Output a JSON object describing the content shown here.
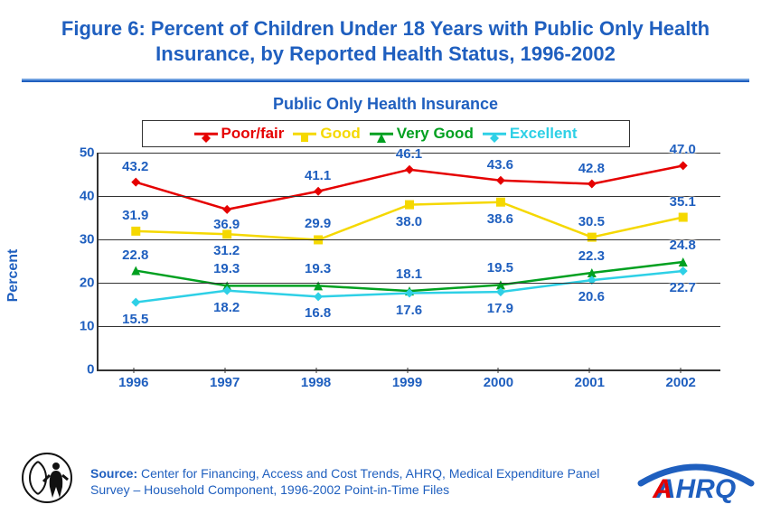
{
  "title": "Figure 6: Percent of Children Under 18 Years with Public Only Health Insurance, by Reported Health Status, 1996-2002",
  "subtitle": "Public Only Health Insurance",
  "y_axis_label": "Percent",
  "source_label": "Source:",
  "source_text": "Center for Financing, Access and Cost Trends, AHRQ, Medical Expenditure Panel Survey – Household Component, 1996-2002 Point-in-Time Files",
  "chart": {
    "type": "line",
    "categories": [
      "1996",
      "1997",
      "1998",
      "1999",
      "2000",
      "2001",
      "2002"
    ],
    "ylim": [
      0,
      50
    ],
    "ytick_step": 10,
    "y_ticks": [
      0,
      10,
      20,
      30,
      40,
      50
    ],
    "background_color": "#ffffff",
    "grid_color": "#333333",
    "axis_color": "#333333",
    "tick_font_color": "#1f5fbf",
    "label_font_color": "#1f5fbf",
    "data_label_font_color": "#1f5fbf",
    "title_font_color": "#1f5fbf",
    "tick_fontsize": 15,
    "label_fontsize": 16,
    "data_label_fontsize": 15,
    "line_width": 2.5,
    "marker_size": 10,
    "series": [
      {
        "name": "Poor/fair",
        "color": "#e50000",
        "marker": "diamond",
        "values": [
          43.2,
          36.9,
          41.1,
          46.1,
          43.6,
          42.8,
          47.0
        ],
        "label_offsets": [
          -18,
          16,
          -18,
          -18,
          -18,
          -18,
          -18
        ]
      },
      {
        "name": "Good",
        "color": "#f5d800",
        "marker": "square",
        "values": [
          31.9,
          31.2,
          29.9,
          38.0,
          38.6,
          30.5,
          35.1
        ],
        "label_offsets": [
          -18,
          18,
          -18,
          18,
          18,
          -18,
          -18
        ]
      },
      {
        "name": "Very Good",
        "color": "#00a020",
        "marker": "triangle",
        "values": [
          22.8,
          19.3,
          19.3,
          18.1,
          19.5,
          22.3,
          24.8
        ],
        "label_offsets": [
          -18,
          -19,
          -19,
          -19,
          -19,
          -19,
          -19
        ]
      },
      {
        "name": "Excellent",
        "color": "#2ed0e6",
        "marker": "diamond",
        "values": [
          15.5,
          18.2,
          16.8,
          17.6,
          17.9,
          20.6,
          22.7
        ],
        "label_offsets": [
          18,
          18,
          18,
          18,
          18,
          18,
          18
        ]
      }
    ]
  },
  "logos": {
    "hhs_color": "#111111",
    "ahrq_text": "AHRQ",
    "ahrq_color": "#1f5fbf",
    "ahrq_accent": "#e50000"
  }
}
